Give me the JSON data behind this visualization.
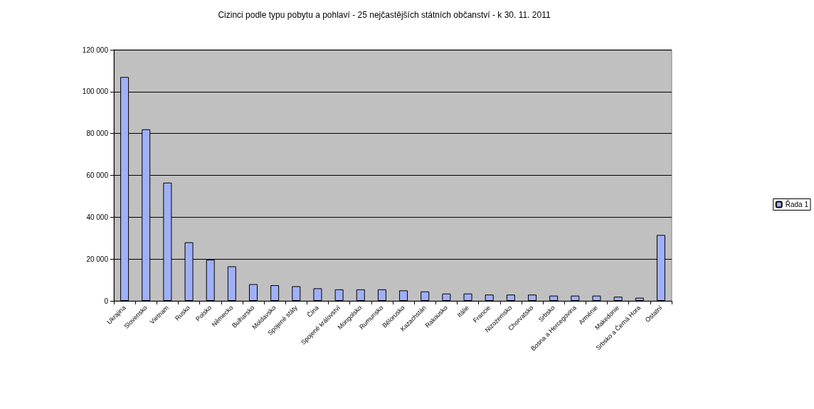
{
  "chart_data": {
    "type": "bar",
    "title": "Cizinci podle typu pobytu a pohlaví - 25 nejčastějších státních občanství - k 30. 11. 2011",
    "categories": [
      "Ukrajina",
      "Slovensko",
      "Vietnam",
      "Rusko",
      "Polsko",
      "Německo",
      "Bulharsko",
      "Moldavsko",
      "Spojené státy",
      "Čína",
      "Spojené království",
      "Mongolsko",
      "Rumunsko",
      "Bělorusko",
      "Kazachstán",
      "Rakousko",
      "Itálie",
      "Francie",
      "Nizozemsko",
      "Chorvatsko",
      "Srbsko",
      "Bosna a Hercegovina",
      "Arménie",
      "Makedonie",
      "Srbsko a Černá Hora",
      "Ostatní"
    ],
    "series": [
      {
        "name": "Řada 1",
        "color": "#a0b0f8",
        "values": [
          107000,
          82000,
          56500,
          28000,
          19700,
          16500,
          8000,
          7500,
          7000,
          6000,
          5500,
          5500,
          5500,
          5000,
          4500,
          3500,
          3500,
          3000,
          3000,
          3000,
          2500,
          2500,
          2500,
          2000,
          1500,
          31500
        ]
      }
    ],
    "ylim": [
      0,
      120000
    ],
    "yticks": [
      {
        "value": 0,
        "label": "0"
      },
      {
        "value": 20000,
        "label": "20 000"
      },
      {
        "value": 40000,
        "label": "40 000"
      },
      {
        "value": 60000,
        "label": "60 000"
      },
      {
        "value": 80000,
        "label": "80 000"
      },
      {
        "value": 100000,
        "label": "100 000"
      },
      {
        "value": 120000,
        "label": "120 000"
      }
    ],
    "grid": "y",
    "legend": "right"
  }
}
